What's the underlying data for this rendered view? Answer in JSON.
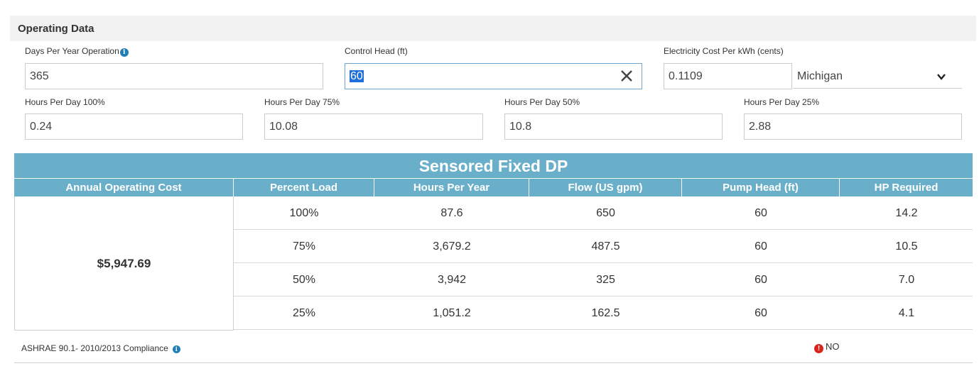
{
  "section": {
    "title": "Operating Data"
  },
  "fields": {
    "days_per_year": {
      "label": "Days Per Year Operation",
      "value": "365"
    },
    "control_head": {
      "label": "Control Head (ft)",
      "value": "60"
    },
    "electricity_cost": {
      "label": "Electricity Cost Per kWh (cents)",
      "value": "0.1109"
    },
    "state": {
      "selected": "Michigan"
    },
    "hours_100": {
      "label": "Hours Per Day 100%",
      "value": "0.24"
    },
    "hours_75": {
      "label": "Hours Per Day 75%",
      "value": "10.08"
    },
    "hours_50": {
      "label": "Hours Per Day 50%",
      "value": "10.8"
    },
    "hours_25": {
      "label": "Hours Per Day 25%",
      "value": "2.88"
    }
  },
  "table": {
    "title": "Sensored Fixed DP",
    "headers": [
      "Annual Operating Cost",
      "Percent Load",
      "Hours Per Year",
      "Flow (US gpm)",
      "Pump Head (ft)",
      "HP Required"
    ],
    "annual_cost": "$5,947.69",
    "rows": [
      [
        "100%",
        "87.6",
        "650",
        "60",
        "14.2"
      ],
      [
        "75%",
        "3,679.2",
        "487.5",
        "60",
        "10.5"
      ],
      [
        "50%",
        "3,942",
        "325",
        "60",
        "7.0"
      ],
      [
        "25%",
        "1,051.2",
        "162.5",
        "60",
        "4.1"
      ]
    ]
  },
  "compliance": {
    "label": "ASHRAE 90.1- 2010/2013 Compliance",
    "status": "NO"
  },
  "colors": {
    "table_header": "#6aafca",
    "info_icon": "#1f7fb5",
    "alert": "#d9241c"
  }
}
